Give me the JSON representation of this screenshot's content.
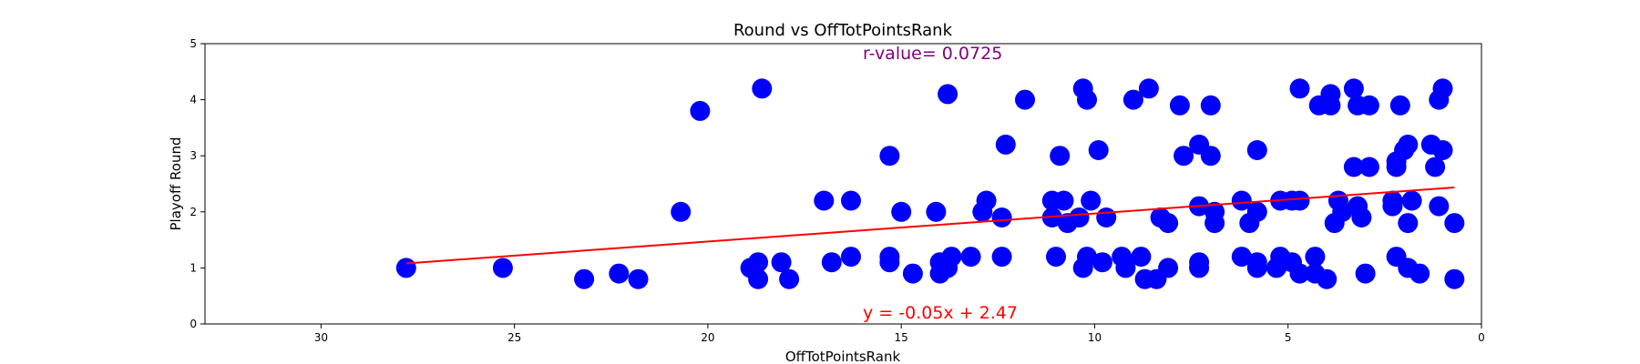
{
  "chart_data": {
    "type": "scatter",
    "title": "Round vs OffTotPointsRank",
    "xlabel": "OffTotPointsRank",
    "ylabel": "Playoff Round",
    "xlim": [
      33,
      0
    ],
    "ylim": [
      0,
      5
    ],
    "x_inverted": true,
    "xticks": [
      30,
      25,
      20,
      15,
      10,
      5,
      0
    ],
    "yticks": [
      0,
      1,
      2,
      3,
      4,
      5
    ],
    "grid": false,
    "marker_color": "#0000ff",
    "line_color": "#ff0000",
    "r_value_color": "#800080",
    "annotations": {
      "r_value": "r-value= 0.0725",
      "equation": "y = -0.05x + 2.47"
    },
    "regression": {
      "slope": -0.05,
      "intercept": 2.47,
      "x_range": [
        27.8,
        0.7
      ]
    },
    "points": [
      [
        27.8,
        1.0
      ],
      [
        25.3,
        1.0
      ],
      [
        23.2,
        0.8
      ],
      [
        22.3,
        0.9
      ],
      [
        21.8,
        0.8
      ],
      [
        20.7,
        2.0
      ],
      [
        20.2,
        3.8
      ],
      [
        18.9,
        1.0
      ],
      [
        18.7,
        1.1
      ],
      [
        18.6,
        4.2
      ],
      [
        18.7,
        0.8
      ],
      [
        18.1,
        1.1
      ],
      [
        17.9,
        0.8
      ],
      [
        17.0,
        2.2
      ],
      [
        16.8,
        1.1
      ],
      [
        16.3,
        2.2
      ],
      [
        16.3,
        1.2
      ],
      [
        15.3,
        3.0
      ],
      [
        15.3,
        1.2
      ],
      [
        15.3,
        1.1
      ],
      [
        15.0,
        2.0
      ],
      [
        14.7,
        0.9
      ],
      [
        14.1,
        2.0
      ],
      [
        14.0,
        1.1
      ],
      [
        14.0,
        0.9
      ],
      [
        13.8,
        4.1
      ],
      [
        13.8,
        1.0
      ],
      [
        13.7,
        1.2
      ],
      [
        13.2,
        1.2
      ],
      [
        12.9,
        2.0
      ],
      [
        12.8,
        2.2
      ],
      [
        12.4,
        1.9
      ],
      [
        12.4,
        1.2
      ],
      [
        12.3,
        3.2
      ],
      [
        11.8,
        4.0
      ],
      [
        11.1,
        2.2
      ],
      [
        11.1,
        1.9
      ],
      [
        11.0,
        1.2
      ],
      [
        10.9,
        3.0
      ],
      [
        10.8,
        2.2
      ],
      [
        10.7,
        1.8
      ],
      [
        10.4,
        1.9
      ],
      [
        10.3,
        4.2
      ],
      [
        10.3,
        1.0
      ],
      [
        10.2,
        4.0
      ],
      [
        10.2,
        1.2
      ],
      [
        10.1,
        2.2
      ],
      [
        9.9,
        3.1
      ],
      [
        9.8,
        1.1
      ],
      [
        9.7,
        1.9
      ],
      [
        9.3,
        1.2
      ],
      [
        9.2,
        1.0
      ],
      [
        9.0,
        4.0
      ],
      [
        8.8,
        1.2
      ],
      [
        8.7,
        0.8
      ],
      [
        8.6,
        4.2
      ],
      [
        8.4,
        0.8
      ],
      [
        8.3,
        1.9
      ],
      [
        8.1,
        1.8
      ],
      [
        8.1,
        1.0
      ],
      [
        7.8,
        3.9
      ],
      [
        7.7,
        3.0
      ],
      [
        7.3,
        3.2
      ],
      [
        7.3,
        2.1
      ],
      [
        7.3,
        1.1
      ],
      [
        7.3,
        1.0
      ],
      [
        7.0,
        3.9
      ],
      [
        7.0,
        3.0
      ],
      [
        6.9,
        2.0
      ],
      [
        6.9,
        1.8
      ],
      [
        6.2,
        2.2
      ],
      [
        6.2,
        1.2
      ],
      [
        6.0,
        1.8
      ],
      [
        5.8,
        3.1
      ],
      [
        5.8,
        2.0
      ],
      [
        5.8,
        1.1
      ],
      [
        5.8,
        1.0
      ],
      [
        5.3,
        1.0
      ],
      [
        5.2,
        2.2
      ],
      [
        5.2,
        1.2
      ],
      [
        4.9,
        2.2
      ],
      [
        4.9,
        1.1
      ],
      [
        4.7,
        4.2
      ],
      [
        4.7,
        2.2
      ],
      [
        4.7,
        0.9
      ],
      [
        4.3,
        1.2
      ],
      [
        4.3,
        0.9
      ],
      [
        4.2,
        3.9
      ],
      [
        4.0,
        0.8
      ],
      [
        3.9,
        4.1
      ],
      [
        3.9,
        3.9
      ],
      [
        3.8,
        1.8
      ],
      [
        3.7,
        2.2
      ],
      [
        3.6,
        2.0
      ],
      [
        3.3,
        4.2
      ],
      [
        3.3,
        2.8
      ],
      [
        3.2,
        3.9
      ],
      [
        3.2,
        2.1
      ],
      [
        3.1,
        1.9
      ],
      [
        3.0,
        0.9
      ],
      [
        2.9,
        3.9
      ],
      [
        2.9,
        2.8
      ],
      [
        2.3,
        2.2
      ],
      [
        2.3,
        2.1
      ],
      [
        2.2,
        2.8
      ],
      [
        2.2,
        2.9
      ],
      [
        2.2,
        1.2
      ],
      [
        2.1,
        3.9
      ],
      [
        2.0,
        3.1
      ],
      [
        1.9,
        3.2
      ],
      [
        1.9,
        1.8
      ],
      [
        1.9,
        1.0
      ],
      [
        1.8,
        2.2
      ],
      [
        1.6,
        0.9
      ],
      [
        1.3,
        3.2
      ],
      [
        1.2,
        2.8
      ],
      [
        1.1,
        4.0
      ],
      [
        1.1,
        2.1
      ],
      [
        1.0,
        4.2
      ],
      [
        1.0,
        3.1
      ],
      [
        0.7,
        1.8
      ],
      [
        0.7,
        0.8
      ]
    ]
  }
}
